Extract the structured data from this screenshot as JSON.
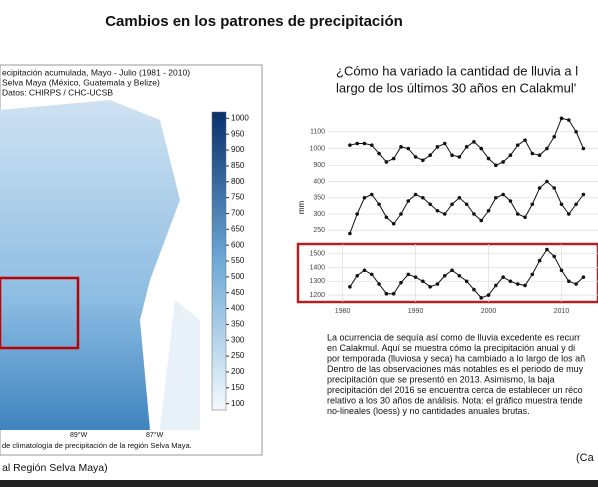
{
  "header": {
    "title": "Cambios en los patrones de precipitación"
  },
  "map": {
    "legend_lines": [
      "ecipitación acumulada, Mayo - Julio (1981 - 2010)",
      "Selva Maya (México, Guatemala y Belize)",
      "Datos: CHIRPS / CHC-UCSB"
    ],
    "lon_labels": [
      "89°W",
      "87°W"
    ],
    "colorbar_ticks": [
      100,
      150,
      200,
      250,
      300,
      350,
      400,
      450,
      500,
      550,
      600,
      650,
      700,
      750,
      800,
      850,
      900,
      950,
      1000
    ],
    "colorbar_lim": [
      80,
      1020
    ],
    "caption": "de climatología de precipitación de la región Selva Maya.",
    "source": "al Región Selva Maya)"
  },
  "right": {
    "heading": [
      "¿Cómo ha variado la cantidad de lluvia a l",
      "largo de los últimos 30 años en Calakmul'"
    ],
    "paragraph": [
      "La ocurrencia de sequía así como de lluvia excedente es recurr",
      "en Calakmul. Aquí se muestra cómo la precipitación anual y di",
      "por temporada (lluviosa y seca) ha cambiado a lo largo de los añ",
      "Dentro de las observaciones más notables es el periodo de muy",
      "precipitación que se presentó en 2013. Asimismo, la baja",
      "precipitación del 2016 se encuentra cerca de establecer un réco",
      "relativo a los 30 años de análisis. Nota: el gráfico muestra tende",
      "no-lineales (loess) y no cantidades anuales brutas."
    ],
    "corner": "(Ca"
  },
  "chart_data": [
    {
      "type": "line",
      "x": [
        1981,
        1982,
        1983,
        1984,
        1985,
        1986,
        1987,
        1988,
        1989,
        1990,
        1991,
        1992,
        1993,
        1994,
        1995,
        1996,
        1997,
        1998,
        1999,
        2000,
        2001,
        2002,
        2003,
        2004,
        2005,
        2006,
        2007,
        2008,
        2009,
        2010,
        2011,
        2012,
        2013
      ],
      "values": [
        1020,
        1030,
        1030,
        1020,
        970,
        920,
        940,
        1010,
        1000,
        950,
        930,
        960,
        1010,
        1030,
        960,
        950,
        1010,
        1040,
        1000,
        940,
        900,
        920,
        960,
        1020,
        1050,
        970,
        960,
        1000,
        1070,
        1180,
        1170,
        1100,
        1000
      ],
      "color": "#111",
      "xlim": [
        1978,
        2015
      ],
      "ylim": [
        860,
        1200
      ],
      "yticks": [
        900,
        1000,
        1100
      ],
      "grid": true
    },
    {
      "type": "line",
      "x": [
        1981,
        1982,
        1983,
        1984,
        1985,
        1986,
        1987,
        1988,
        1989,
        1990,
        1991,
        1992,
        1993,
        1994,
        1995,
        1996,
        1997,
        1998,
        1999,
        2000,
        2001,
        2002,
        2003,
        2004,
        2005,
        2006,
        2007,
        2008,
        2009,
        2010,
        2011,
        2012,
        2013
      ],
      "values": [
        240,
        300,
        350,
        360,
        330,
        290,
        270,
        300,
        340,
        360,
        350,
        330,
        310,
        300,
        330,
        350,
        330,
        300,
        280,
        310,
        350,
        360,
        340,
        300,
        290,
        330,
        380,
        400,
        380,
        330,
        300,
        330,
        360
      ],
      "color": "#111",
      "xlim": [
        1978,
        2015
      ],
      "ylim": [
        220,
        420
      ],
      "yticks": [
        250,
        300,
        350,
        400
      ],
      "ylabel": "mm",
      "grid": true
    },
    {
      "type": "line",
      "x": [
        1981,
        1982,
        1983,
        1984,
        1985,
        1986,
        1987,
        1988,
        1989,
        1990,
        1991,
        1992,
        1993,
        1994,
        1995,
        1996,
        1997,
        1998,
        1999,
        2000,
        2001,
        2002,
        2003,
        2004,
        2005,
        2006,
        2007,
        2008,
        2009,
        2010,
        2011,
        2012,
        2013
      ],
      "values": [
        1260,
        1340,
        1380,
        1350,
        1280,
        1210,
        1210,
        1290,
        1350,
        1330,
        1300,
        1260,
        1280,
        1340,
        1380,
        1340,
        1300,
        1240,
        1180,
        1200,
        1270,
        1330,
        1300,
        1280,
        1270,
        1350,
        1450,
        1530,
        1480,
        1380,
        1300,
        1280,
        1330
      ],
      "color": "#111",
      "xlim": [
        1978,
        2015
      ],
      "ylim": [
        1150,
        1570
      ],
      "yticks": [
        1200,
        1300,
        1400,
        1500
      ],
      "xticks": [
        1980,
        1990,
        2000,
        2010
      ],
      "grid": true,
      "highlight": "#b22222"
    }
  ]
}
